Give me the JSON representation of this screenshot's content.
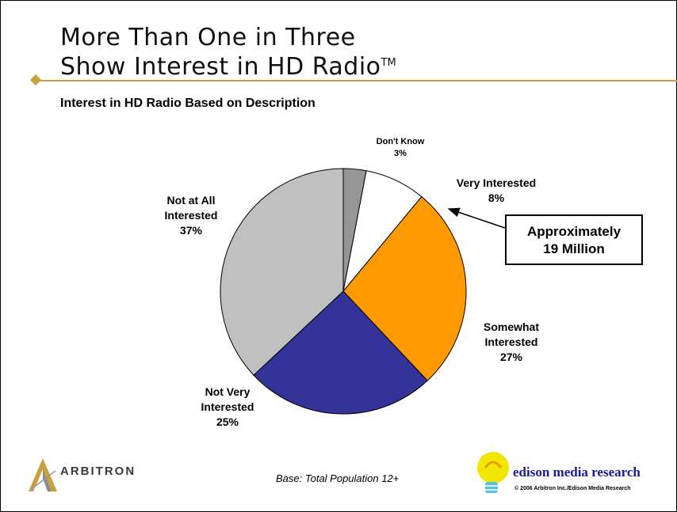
{
  "title_line1": "More Than One in Three",
  "title_line2": "Show Interest in HD Radio",
  "title_tm": "TM",
  "subtitle": "Interest in HD Radio Based on Description",
  "callout": {
    "line1": "Approximately",
    "line2": "19 Million"
  },
  "base_note": "Base:  Total Population 12+",
  "arbitron_logo_text": "ARBITRON",
  "edison_logo_text": "edison media research",
  "copyright": "© 2006 Arbitron Inc./Edison Media Research",
  "colors": {
    "accent_rule": "#c8a040",
    "edison_text": "#1a1a9a"
  },
  "chart_data": {
    "type": "pie",
    "title": "Interest in HD Radio Based on Description",
    "slices": [
      {
        "label_lines": [
          "Very Interested",
          "8%"
        ],
        "value": 8,
        "color": "#ffffff"
      },
      {
        "label_lines": [
          "Somewhat",
          "Interested",
          "27%"
        ],
        "value": 27,
        "color": "#ff9900"
      },
      {
        "label_lines": [
          "Not Very",
          "Interested",
          "25%"
        ],
        "value": 25,
        "color": "#333399"
      },
      {
        "label_lines": [
          "Not at All",
          "Interested",
          "37%"
        ],
        "value": 37,
        "color": "#c0c0c0"
      },
      {
        "label_lines": [
          "Don't Know",
          "3%"
        ],
        "value": 3,
        "color": "#969696"
      }
    ]
  }
}
